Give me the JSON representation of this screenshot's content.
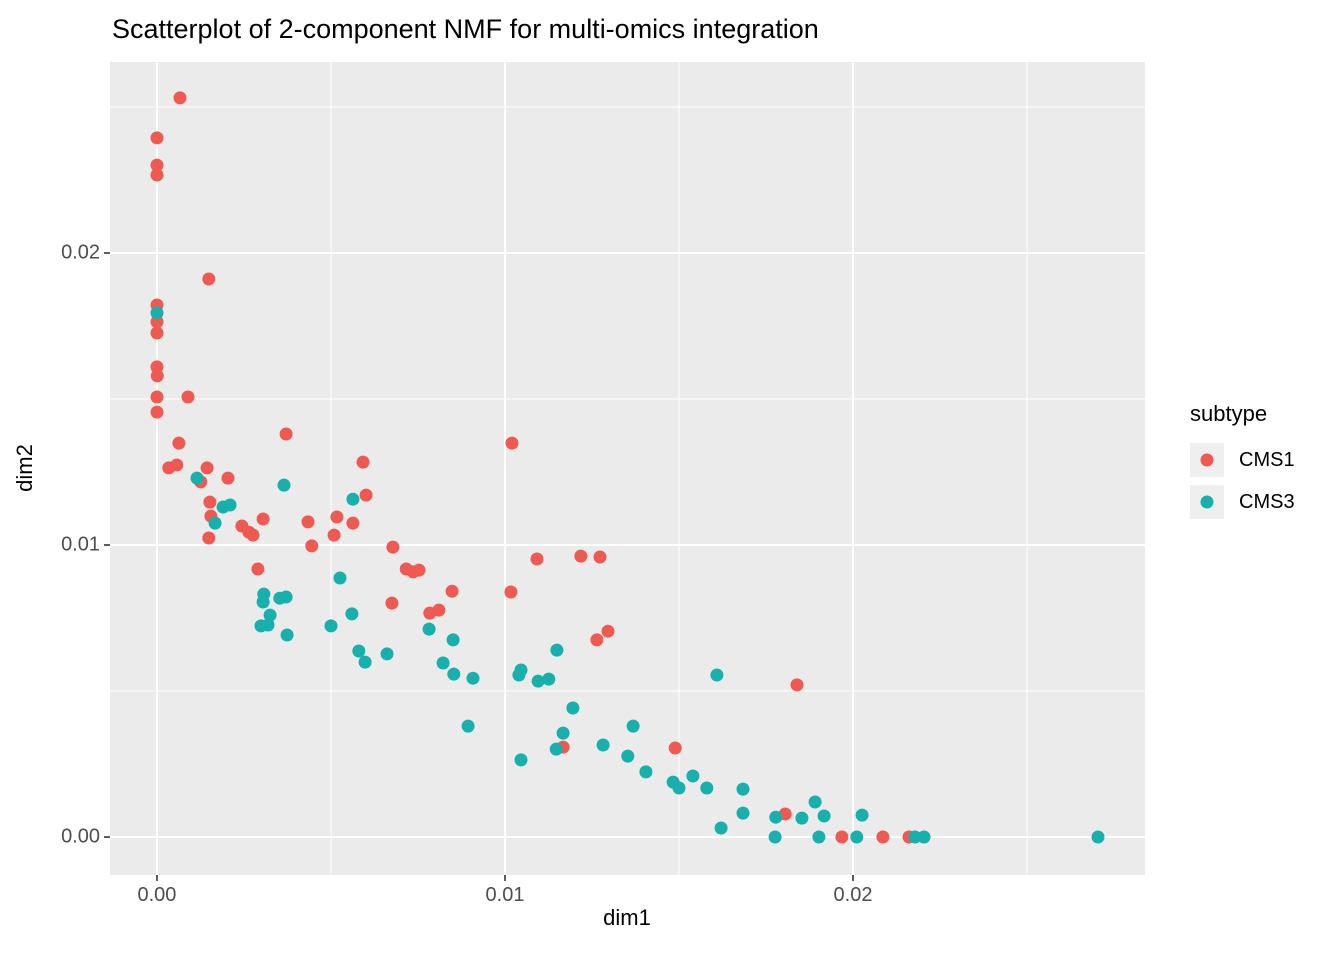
{
  "title": "Scatterplot of 2-component NMF for multi-omics integration",
  "axes": {
    "x": {
      "label": "dim1",
      "tick_labels": [
        "0.00",
        "0.01",
        "0.02"
      ]
    },
    "y": {
      "label": "dim2",
      "tick_labels": [
        "0.00",
        "0.01",
        "0.02"
      ]
    }
  },
  "legend": {
    "title": "subtype",
    "items": [
      {
        "label": "CMS1",
        "color": "#ee5a52"
      },
      {
        "label": "CMS3",
        "color": "#17b0ac"
      }
    ]
  },
  "colors": {
    "panel_background": "#ebebeb",
    "gridline": "#ffffff",
    "tick_mark": "#333333",
    "tick_text": "#4d4d4d",
    "legend_key_background": "#efefef"
  },
  "chart_data": {
    "type": "scatter",
    "title": "Scatterplot of 2-component NMF for multi-omics integration",
    "xlabel": "dim1",
    "ylabel": "dim2",
    "xlim": [
      -0.00135,
      0.02839
    ],
    "ylim": [
      -0.0013,
      0.02654
    ],
    "x_ticks": [
      0.0,
      0.01,
      0.02
    ],
    "y_ticks": [
      0.0,
      0.01,
      0.02
    ],
    "x_minor_ticks": [
      0.005,
      0.015,
      0.025
    ],
    "y_minor_ticks": [
      0.005,
      0.015,
      0.025
    ],
    "grid": true,
    "legend_position": "right",
    "legend_title": "subtype",
    "series": [
      {
        "name": "CMS1",
        "color": "#ee5a52",
        "points": [
          [
            0.00066,
            0.02531
          ],
          [
            0.0,
            0.02394
          ],
          [
            0.0,
            0.02301
          ],
          [
            0.0,
            0.02267
          ],
          [
            0.00149,
            0.01911
          ],
          [
            0.0,
            0.01822
          ],
          [
            0.0,
            0.01764
          ],
          [
            0.0,
            0.01726
          ],
          [
            0.0,
            0.0161
          ],
          [
            1e-05,
            0.01579
          ],
          [
            0.0,
            0.01507
          ],
          [
            0.00089,
            0.01507
          ],
          [
            0.0,
            0.01455
          ],
          [
            0.00063,
            0.01349
          ],
          [
            0.00034,
            0.01264
          ],
          [
            0.00057,
            0.01274
          ],
          [
            0.00144,
            0.01264
          ],
          [
            0.00126,
            0.01216
          ],
          [
            0.00204,
            0.01229
          ],
          [
            0.00152,
            0.01147
          ],
          [
            0.00155,
            0.01099
          ],
          [
            0.00244,
            0.01065
          ],
          [
            0.00264,
            0.01044
          ],
          [
            0.00276,
            0.01034
          ],
          [
            0.00149,
            0.01024
          ],
          [
            0.00305,
            0.01089
          ],
          [
            0.00371,
            0.0138
          ],
          [
            0.00592,
            0.01284
          ],
          [
            0.00601,
            0.01171
          ],
          [
            0.00434,
            0.01079
          ],
          [
            0.00517,
            0.01096
          ],
          [
            0.00563,
            0.01075
          ],
          [
            0.00509,
            0.01034
          ],
          [
            0.00445,
            0.00997
          ],
          [
            0.00678,
            0.00993
          ],
          [
            0.0029,
            0.00918
          ],
          [
            0.00716,
            0.00918
          ],
          [
            0.00736,
            0.00908
          ],
          [
            0.00753,
            0.00914
          ],
          [
            0.00848,
            0.00842
          ],
          [
            0.00675,
            0.00801
          ],
          [
            0.00784,
            0.00767
          ],
          [
            0.0081,
            0.00777
          ],
          [
            0.0102,
            0.01349
          ],
          [
            0.01092,
            0.00952
          ],
          [
            0.01218,
            0.00962
          ],
          [
            0.01273,
            0.00959
          ],
          [
            0.01017,
            0.00839
          ],
          [
            0.01264,
            0.00675
          ],
          [
            0.01296,
            0.00705
          ],
          [
            0.01167,
            0.00308
          ],
          [
            0.01489,
            0.00305
          ],
          [
            0.01839,
            0.00521
          ],
          [
            0.01805,
            0.00079
          ],
          [
            0.01968,
            0.0
          ],
          [
            0.02086,
            0.0
          ],
          [
            0.02161,
            0.0
          ]
        ]
      },
      {
        "name": "CMS3",
        "color": "#17b0ac",
        "points": [
          [
            0.0,
            0.01795
          ],
          [
            0.00115,
            0.01229
          ],
          [
            0.0019,
            0.0113
          ],
          [
            0.0021,
            0.01137
          ],
          [
            0.00167,
            0.01075
          ],
          [
            0.00365,
            0.01205
          ],
          [
            0.00563,
            0.01157
          ],
          [
            0.00526,
            0.00887
          ],
          [
            0.00307,
            0.00832
          ],
          [
            0.00305,
            0.00805
          ],
          [
            0.00353,
            0.00818
          ],
          [
            0.00371,
            0.00822
          ],
          [
            0.00325,
            0.0076
          ],
          [
            0.00299,
            0.00723
          ],
          [
            0.00319,
            0.00726
          ],
          [
            0.00374,
            0.00692
          ],
          [
            0.005,
            0.00723
          ],
          [
            0.0056,
            0.00764
          ],
          [
            0.0058,
            0.00637
          ],
          [
            0.00598,
            0.00599
          ],
          [
            0.00661,
            0.00627
          ],
          [
            0.00782,
            0.00712
          ],
          [
            0.00822,
            0.00596
          ],
          [
            0.00851,
            0.00675
          ],
          [
            0.00853,
            0.00558
          ],
          [
            0.00908,
            0.00544
          ],
          [
            0.00894,
            0.0038
          ],
          [
            0.01149,
            0.0064
          ],
          [
            0.01046,
            0.00572
          ],
          [
            0.0104,
            0.00555
          ],
          [
            0.01095,
            0.00534
          ],
          [
            0.01126,
            0.00541
          ],
          [
            0.01609,
            0.00555
          ],
          [
            0.01195,
            0.00442
          ],
          [
            0.01167,
            0.00356
          ],
          [
            0.01368,
            0.0038
          ],
          [
            0.01147,
            0.00301
          ],
          [
            0.01282,
            0.00315
          ],
          [
            0.01046,
            0.00264
          ],
          [
            0.01353,
            0.00277
          ],
          [
            0.01405,
            0.00223
          ],
          [
            0.0154,
            0.00209
          ],
          [
            0.01483,
            0.00188
          ],
          [
            0.015,
            0.00168
          ],
          [
            0.0158,
            0.00168
          ],
          [
            0.01684,
            0.00164
          ],
          [
            0.01891,
            0.0012
          ],
          [
            0.01684,
            0.00082
          ],
          [
            0.01778,
            0.00068
          ],
          [
            0.01853,
            0.00065
          ],
          [
            0.01917,
            0.00072
          ],
          [
            0.02026,
            0.00075
          ],
          [
            0.01621,
            0.00031
          ],
          [
            0.01776,
            0.0
          ],
          [
            0.01902,
            0.0
          ],
          [
            0.02011,
            0.0
          ],
          [
            0.02178,
            0.0
          ],
          [
            0.02204,
            0.0
          ],
          [
            0.02704,
            0.0
          ]
        ]
      }
    ]
  }
}
